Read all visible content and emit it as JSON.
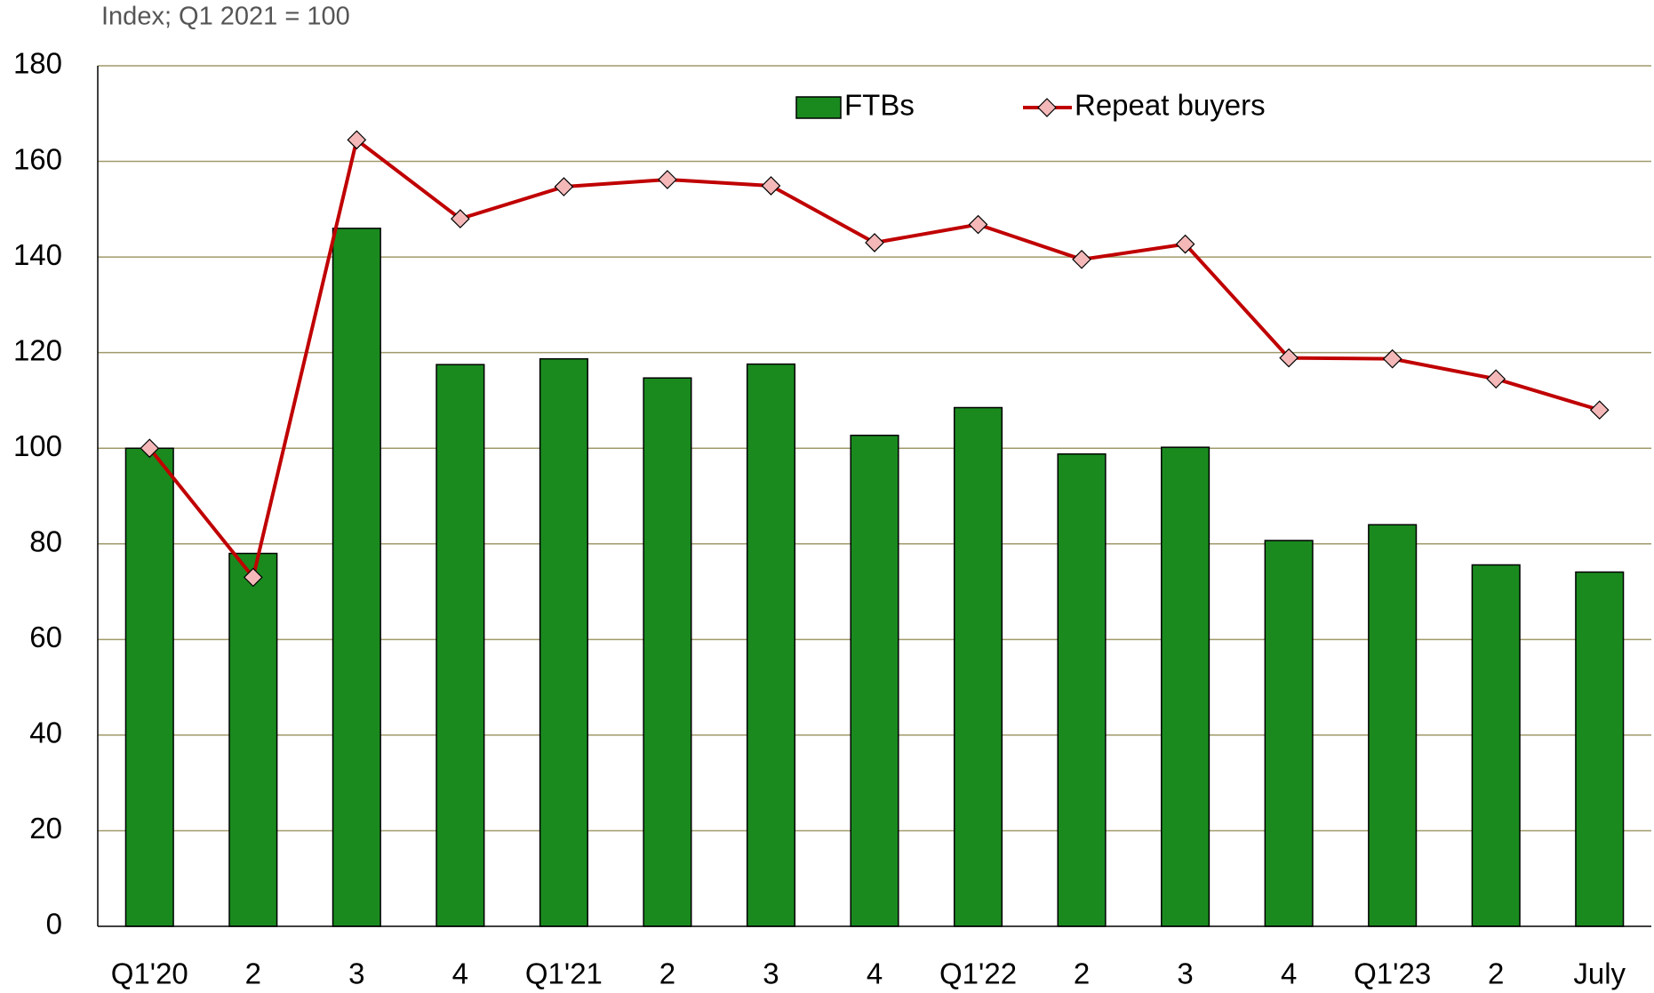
{
  "chart_data": {
    "type": "bar_line",
    "subtitle": "Index; Q1 2021 = 100",
    "categories": [
      "Q1'20",
      "2",
      "3",
      "4",
      "Q1'21",
      "2",
      "3",
      "4",
      "Q1'22",
      "2",
      "3",
      "4",
      "Q1'23",
      "2",
      "July"
    ],
    "series": [
      {
        "name": "FTBs",
        "type": "bar",
        "color": "#1a8a1f",
        "values": [
          100,
          78,
          146,
          117.5,
          118.7,
          114.7,
          117.6,
          102.7,
          108.5,
          98.8,
          100.2,
          80.7,
          84,
          75.6,
          74.1
        ]
      },
      {
        "name": "Repeat buyers",
        "type": "line",
        "color": "#c00000",
        "marker_color": "#f4b8b8",
        "values": [
          100,
          73,
          164.5,
          148,
          154.7,
          156.2,
          154.9,
          143,
          146.8,
          139.5,
          142.7,
          118.9,
          118.7,
          114.5,
          108
        ]
      }
    ],
    "ylim": [
      0,
      180
    ],
    "yticks": [
      0,
      20,
      40,
      60,
      80,
      100,
      120,
      140,
      160,
      180
    ],
    "grid": true,
    "legend": "top"
  }
}
